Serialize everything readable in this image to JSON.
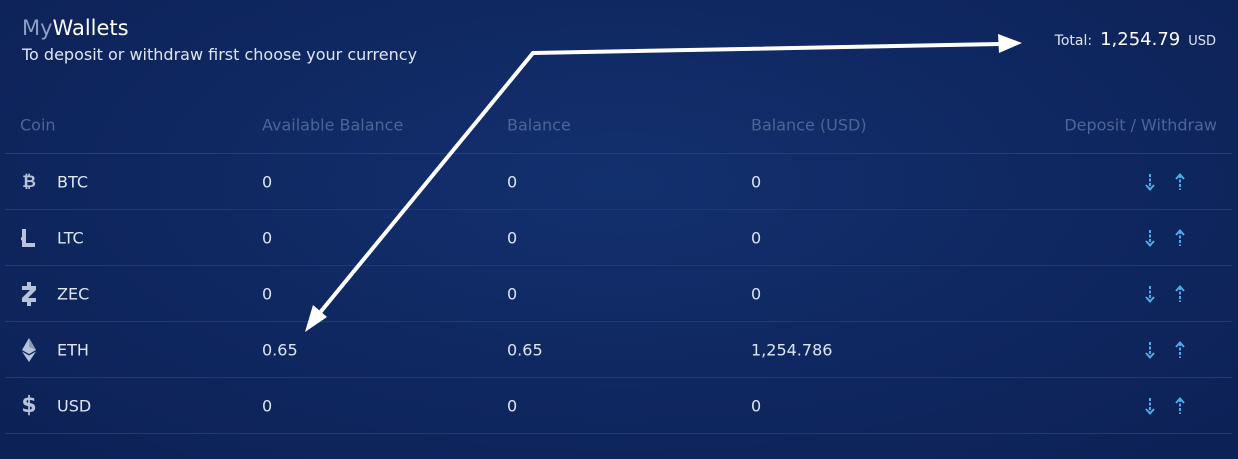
{
  "header": {
    "title_prefix": "My",
    "title_main": "Wallets",
    "subtitle": "To deposit or withdraw first choose your currency"
  },
  "total": {
    "label": "Total:",
    "value": "1,254.79",
    "currency": "USD"
  },
  "table": {
    "columns": [
      "Coin",
      "Available Balance",
      "Balance",
      "Balance (USD)",
      "Deposit / Withdraw"
    ],
    "rows": [
      {
        "coin": "BTC",
        "icon": "bitcoin-icon",
        "available": "0",
        "balance": "0",
        "usd": "0"
      },
      {
        "coin": "LTC",
        "icon": "litecoin-icon",
        "available": "0",
        "balance": "0",
        "usd": "0"
      },
      {
        "coin": "ZEC",
        "icon": "zcash-icon",
        "available": "0",
        "balance": "0",
        "usd": "0"
      },
      {
        "coin": "ETH",
        "icon": "ethereum-icon",
        "available": "0.65",
        "balance": "0.65",
        "usd": "1,254.786"
      },
      {
        "coin": "USD",
        "icon": "dollar-icon",
        "available": "0",
        "balance": "0",
        "usd": "0"
      }
    ]
  },
  "colors": {
    "background": "#0f2760",
    "accent": "#4fa8e8",
    "header_text": "#4c6597",
    "annotation": "#ffffff"
  }
}
